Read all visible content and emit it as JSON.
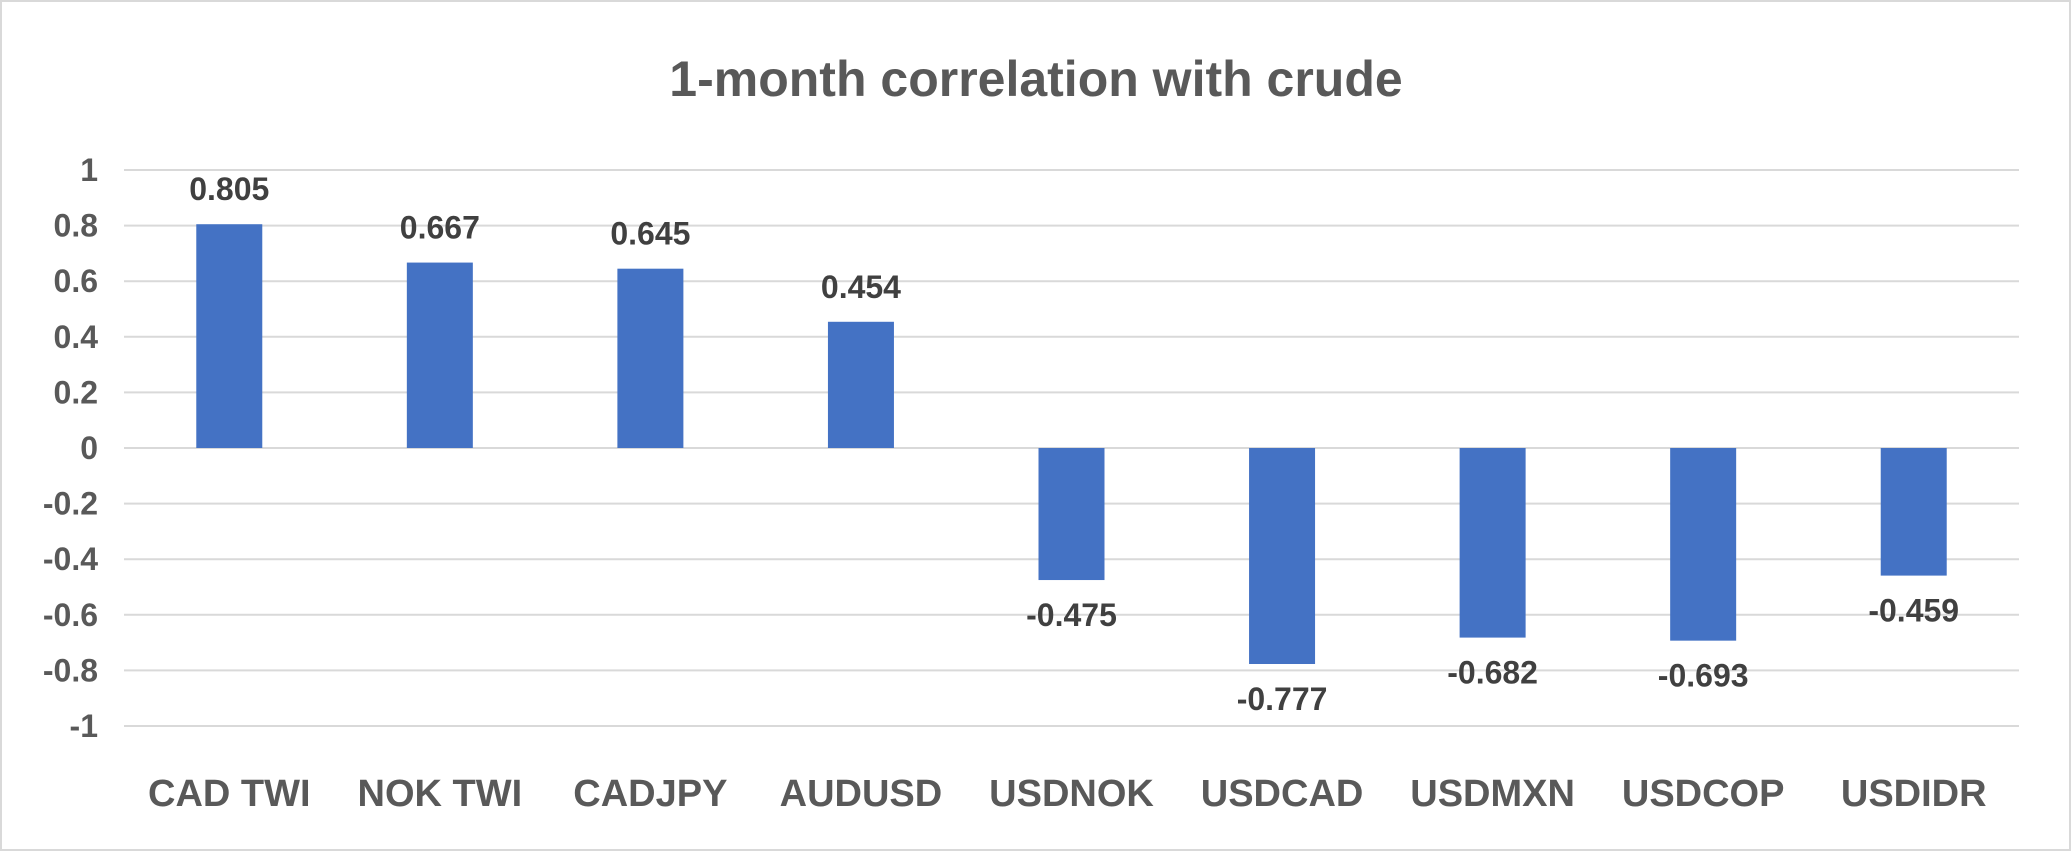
{
  "chart_data": {
    "type": "bar",
    "title": "1-month correlation with crude",
    "xlabel": "",
    "ylabel": "",
    "categories": [
      "CAD TWI",
      "NOK TWI",
      "CADJPY",
      "AUDUSD",
      "USDNOK",
      "USDCAD",
      "USDMXN",
      "USDCOP",
      "USDIDR"
    ],
    "values": [
      0.805,
      0.667,
      0.645,
      0.454,
      -0.475,
      -0.777,
      -0.682,
      -0.693,
      -0.459
    ],
    "data_labels": [
      "0.805",
      "0.667",
      "0.645",
      "0.454",
      "-0.475",
      "-0.777",
      "-0.682",
      "-0.693",
      "-0.459"
    ],
    "ylim": [
      -1,
      1
    ],
    "yticks": [
      1,
      0.8,
      0.6,
      0.4,
      0.2,
      0,
      -0.2,
      -0.4,
      -0.6,
      -0.8,
      -1
    ],
    "ytick_labels": [
      "1",
      "0.8",
      "0.6",
      "0.4",
      "0.2",
      "0",
      "-0.2",
      "-0.4",
      "-0.6",
      "-0.8",
      "-1"
    ],
    "grid": true,
    "legend": "none",
    "bar_color": "#4472c4",
    "grid_color": "#d9d9d9"
  }
}
